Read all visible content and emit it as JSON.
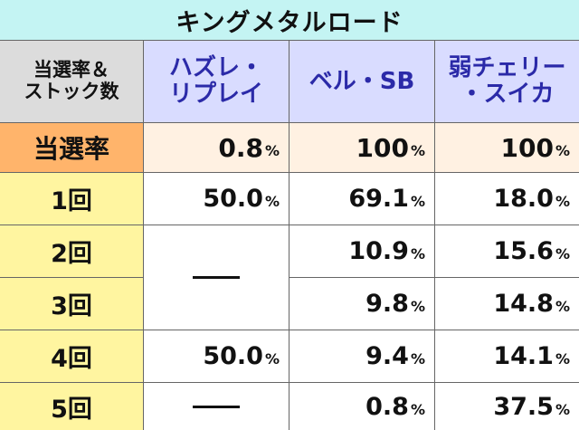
{
  "title": "キングメタルロード",
  "header": {
    "label_lines": [
      "当選率＆",
      "ストック数"
    ],
    "columns": [
      {
        "lines": [
          "ハズレ・",
          "リプレイ"
        ]
      },
      {
        "lines": [
          "ベル・SB"
        ]
      },
      {
        "lines": [
          "弱チェリー",
          "・スイカ"
        ]
      }
    ]
  },
  "win_rate": {
    "label": "当選率",
    "values": [
      "0.8",
      "100",
      "100"
    ],
    "unit": "%"
  },
  "rows": [
    {
      "label": "1回",
      "values": [
        "50.0",
        "69.1",
        "18.0"
      ]
    },
    {
      "label": "2回",
      "values": [
        null,
        "10.9",
        "15.6"
      ]
    },
    {
      "label": "3回",
      "values": [
        null,
        "9.8",
        "14.8"
      ]
    },
    {
      "label": "4回",
      "values": [
        "50.0",
        "9.4",
        "14.1"
      ]
    },
    {
      "label": "5回",
      "values": [
        null,
        "0.8",
        "37.5"
      ]
    }
  ],
  "dash_symbol": "—",
  "colors": {
    "title_bg": "#c4f4f3",
    "header_label_bg": "#dcdcdc",
    "header_col_bg": "#d9dcff",
    "header_col_text": "#2b2aa8",
    "rate_label_bg": "#ffb46b",
    "rate_value_bg": "#fff1e2",
    "row_label_bg": "#fff5a0"
  }
}
